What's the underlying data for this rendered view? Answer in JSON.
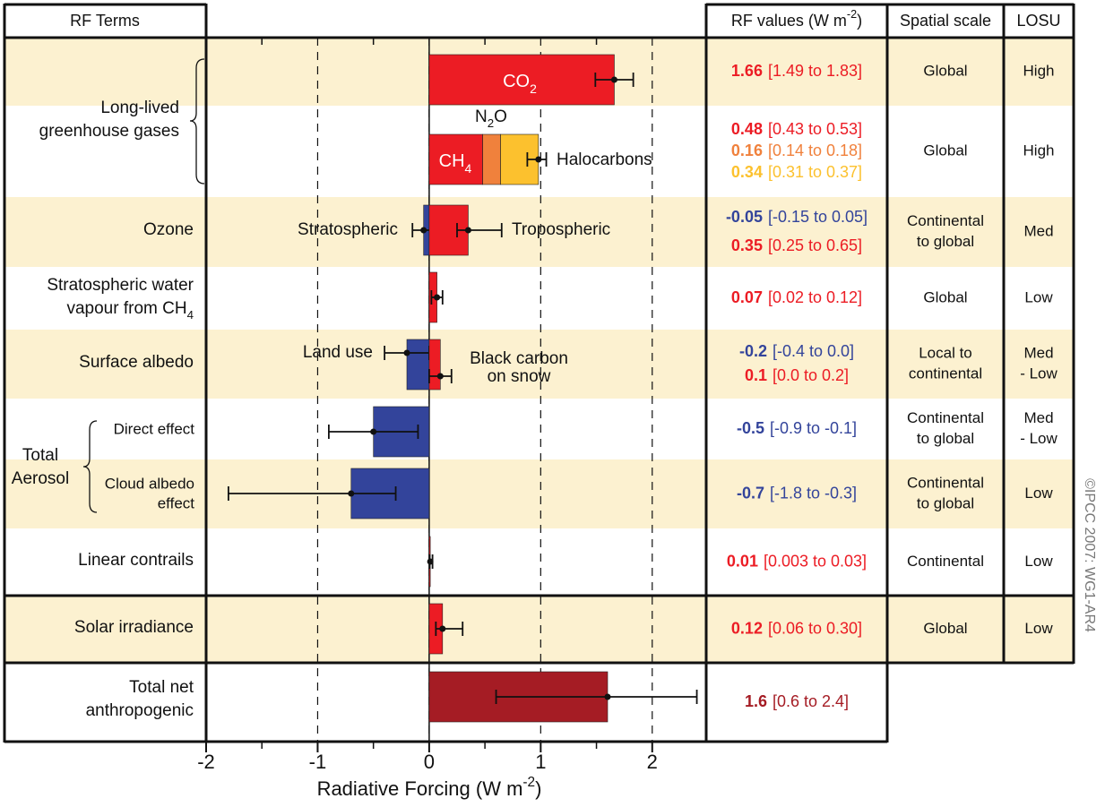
{
  "header": {
    "rf_terms": "RF Terms",
    "rf_values": [
      "RF values (W m",
      "-2",
      ")"
    ],
    "spatial_scale": "Spatial scale",
    "losu": "LOSU"
  },
  "chart_data": {
    "type": "forcing-bar",
    "xlabel": [
      "Radiative Forcing  (W m",
      "-2",
      ")"
    ],
    "xlim": [
      -2,
      2.5
    ],
    "xticks": [
      -2,
      -1,
      0,
      1,
      2
    ],
    "minor_xticks": [
      -1.5,
      -0.5,
      0.5,
      1.5
    ],
    "grid": true,
    "groups": [
      {
        "label": [
          "Long-lived",
          "greenhouse gases"
        ],
        "rows": [
          {
            "bars": [
              {
                "name": [
                  [
                    "CO",
                    "2"
                  ]
                ],
                "value": 1.66,
                "low": 1.49,
                "high": 1.83,
                "range_label": "[1.49 to 1.83]",
                "color": "#ec1c24"
              }
            ],
            "spatial": [
              "Global"
            ],
            "losu": [
              "High"
            ]
          },
          {
            "stacked": true,
            "error": {
              "low": 0.88,
              "high": 1.05
            },
            "bars": [
              {
                "name": [
                  [
                    "CH",
                    "4"
                  ]
                ],
                "value": 0.48,
                "range_label": "[0.43 to 0.53]",
                "color": "#ec1c24"
              },
              {
                "name": [
                  [
                    "N",
                    "2",
                    "O"
                  ]
                ],
                "value": 0.16,
                "range_label": "[0.14 to 0.18]",
                "color": "#f0813c"
              },
              {
                "name": [
                  "Halocarbons"
                ],
                "value": 0.34,
                "range_label": "[0.31 to 0.37]",
                "color": "#fcc12e"
              }
            ],
            "spatial": [
              "Global"
            ],
            "losu": [
              "High"
            ]
          }
        ]
      },
      {
        "label": [
          "Ozone"
        ],
        "rows": [
          {
            "bars": [
              {
                "name": [
                  "Stratospheric"
                ],
                "value": -0.05,
                "low": -0.15,
                "high": 0.05,
                "range_label": "[-0.15 to 0.05]",
                "color": "#33449b"
              },
              {
                "name": [
                  "Tropospheric"
                ],
                "value": 0.35,
                "low": 0.25,
                "high": 0.65,
                "range_label": "[0.25 to 0.65]",
                "color": "#ec1c24"
              }
            ],
            "spatial": [
              "Continental",
              "to global"
            ],
            "losu": [
              "Med"
            ]
          }
        ]
      },
      {
        "label": [
          "Stratospheric water",
          [
            "vapour from CH",
            "4"
          ]
        ],
        "rows": [
          {
            "bars": [
              {
                "value": 0.07,
                "low": 0.02,
                "high": 0.12,
                "range_label": "[0.02 to 0.12]",
                "color": "#ec1c24"
              }
            ],
            "spatial": [
              "Global"
            ],
            "losu": [
              "Low"
            ]
          }
        ]
      },
      {
        "label": [
          "Surface albedo"
        ],
        "rows": [
          {
            "bars": [
              {
                "name": [
                  "Land use"
                ],
                "value": -0.2,
                "low": -0.4,
                "high": 0.0,
                "range_label": "[-0.4 to 0.0]",
                "color": "#33449b"
              },
              {
                "name": [
                  "Black carbon",
                  "on snow"
                ],
                "value": 0.1,
                "low": 0.0,
                "high": 0.2,
                "range_label": "[0.0 to 0.2]",
                "color": "#ec1c24"
              }
            ],
            "spatial": [
              "Local to",
              "continental"
            ],
            "losu": [
              "Med",
              "- Low"
            ]
          }
        ]
      },
      {
        "label": [
          "Total",
          "Aerosol"
        ],
        "rows": [
          {
            "label": [
              "Direct effect"
            ],
            "bars": [
              {
                "value": -0.5,
                "low": -0.9,
                "high": -0.1,
                "range_label": "[-0.9 to -0.1]",
                "color": "#33449b"
              }
            ],
            "spatial": [
              "Continental",
              "to global"
            ],
            "losu": [
              "Med",
              "- Low"
            ]
          },
          {
            "label": [
              "Cloud albedo",
              "effect"
            ],
            "bars": [
              {
                "value": -0.7,
                "low": -1.8,
                "high": -0.3,
                "range_label": "[-1.8 to -0.3]",
                "color": "#33449b"
              }
            ],
            "spatial": [
              "Continental",
              "to global"
            ],
            "losu": [
              "Low"
            ]
          }
        ]
      },
      {
        "label": [
          "Linear contrails"
        ],
        "rows": [
          {
            "bars": [
              {
                "value": 0.01,
                "low": 0.003,
                "high": 0.03,
                "range_label": "[0.003 to 0.03]",
                "color": "#ec1c24"
              }
            ],
            "spatial": [
              "Continental"
            ],
            "losu": [
              "Low"
            ]
          }
        ]
      },
      {
        "label": [
          "Solar irradiance"
        ],
        "rows": [
          {
            "bars": [
              {
                "value": 0.12,
                "low": 0.06,
                "high": 0.3,
                "range_label": "[0.06 to 0.30]",
                "color": "#ec1c24"
              }
            ],
            "spatial": [
              "Global"
            ],
            "losu": [
              "Low"
            ]
          }
        ]
      },
      {
        "label": [
          "Total net",
          "anthropogenic"
        ],
        "rows": [
          {
            "bars": [
              {
                "value": 1.6,
                "low": 0.6,
                "high": 2.4,
                "range_label": "[0.6 to 2.4]",
                "color": "#a51c24"
              }
            ]
          }
        ]
      }
    ]
  },
  "copyright": "©IPCC  2007: WG1-AR4"
}
